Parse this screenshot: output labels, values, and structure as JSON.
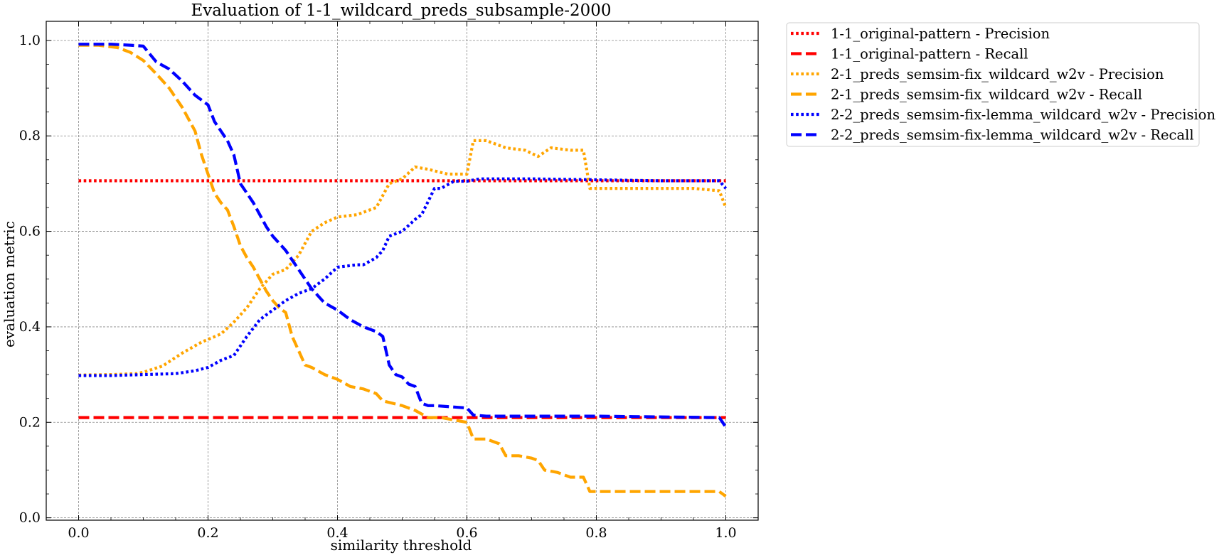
{
  "chart_data": {
    "type": "line",
    "title": "Evaluation of 1-1_wildcard_preds_subsample-2000",
    "xlabel": "similarity threshold",
    "ylabel": "evaluation metric",
    "xlim": [
      -0.05,
      1.05
    ],
    "ylim": [
      -0.005,
      1.04
    ],
    "xticks": [
      0.0,
      0.2,
      0.4,
      0.6,
      0.8,
      1.0
    ],
    "yticks": [
      0.0,
      0.2,
      0.4,
      0.6,
      0.8,
      1.0
    ],
    "xtick_labels": [
      "0.0",
      "0.2",
      "0.4",
      "0.6",
      "0.8",
      "1.0"
    ],
    "ytick_labels": [
      "0.0",
      "0.2",
      "0.4",
      "0.6",
      "0.8",
      "1.0"
    ],
    "grid": true,
    "legend_position": "outside-top-right",
    "series": [
      {
        "name": "1-1_original-pattern - Precision",
        "color": "#ff0000",
        "style": "dotted",
        "x": [
          0.0,
          1.0
        ],
        "y": [
          0.706,
          0.706
        ]
      },
      {
        "name": "1-1_original-pattern - Recall",
        "color": "#ff0000",
        "style": "dashed",
        "x": [
          0.0,
          1.0
        ],
        "y": [
          0.21,
          0.21
        ]
      },
      {
        "name": "2-1_preds_semsim-fix_wildcard_w2v - Precision",
        "color": "#ffa500",
        "style": "dotted",
        "x": [
          0.0,
          0.05,
          0.09,
          0.1,
          0.13,
          0.16,
          0.19,
          0.22,
          0.24,
          0.26,
          0.28,
          0.3,
          0.32,
          0.34,
          0.36,
          0.38,
          0.4,
          0.43,
          0.46,
          0.48,
          0.5,
          0.52,
          0.54,
          0.57,
          0.6,
          0.61,
          0.63,
          0.66,
          0.69,
          0.71,
          0.73,
          0.76,
          0.78,
          0.79,
          0.82,
          0.86,
          0.9,
          0.95,
          0.99,
          1.0
        ],
        "y": [
          0.299,
          0.3,
          0.302,
          0.305,
          0.318,
          0.345,
          0.368,
          0.385,
          0.41,
          0.44,
          0.48,
          0.51,
          0.52,
          0.55,
          0.6,
          0.618,
          0.63,
          0.635,
          0.65,
          0.7,
          0.71,
          0.735,
          0.73,
          0.72,
          0.72,
          0.79,
          0.79,
          0.775,
          0.77,
          0.757,
          0.775,
          0.77,
          0.77,
          0.69,
          0.69,
          0.69,
          0.69,
          0.69,
          0.685,
          0.65
        ]
      },
      {
        "name": "2-1_preds_semsim-fix_wildcard_w2v - Recall",
        "color": "#ffa500",
        "style": "dashed",
        "x": [
          0.0,
          0.03,
          0.06,
          0.08,
          0.1,
          0.12,
          0.14,
          0.16,
          0.18,
          0.19,
          0.2,
          0.21,
          0.22,
          0.23,
          0.24,
          0.25,
          0.26,
          0.27,
          0.28,
          0.29,
          0.3,
          0.31,
          0.32,
          0.33,
          0.34,
          0.35,
          0.36,
          0.38,
          0.4,
          0.42,
          0.44,
          0.46,
          0.47,
          0.5,
          0.52,
          0.54,
          0.56,
          0.58,
          0.6,
          0.61,
          0.63,
          0.65,
          0.66,
          0.68,
          0.7,
          0.71,
          0.72,
          0.74,
          0.76,
          0.78,
          0.79,
          0.82,
          0.9,
          0.99,
          1.0
        ],
        "y": [
          0.99,
          0.99,
          0.985,
          0.975,
          0.958,
          0.93,
          0.9,
          0.86,
          0.81,
          0.76,
          0.72,
          0.68,
          0.66,
          0.645,
          0.61,
          0.57,
          0.545,
          0.525,
          0.5,
          0.475,
          0.455,
          0.44,
          0.43,
          0.38,
          0.35,
          0.32,
          0.315,
          0.3,
          0.29,
          0.275,
          0.27,
          0.26,
          0.245,
          0.235,
          0.225,
          0.21,
          0.21,
          0.205,
          0.2,
          0.165,
          0.165,
          0.155,
          0.13,
          0.13,
          0.125,
          0.12,
          0.1,
          0.095,
          0.085,
          0.085,
          0.055,
          0.055,
          0.055,
          0.055,
          0.045
        ]
      },
      {
        "name": "2-2_preds_semsim-fix-lemma_wildcard_w2v - Precision",
        "color": "#0000ff",
        "style": "dotted",
        "x": [
          0.0,
          0.05,
          0.1,
          0.15,
          0.18,
          0.2,
          0.22,
          0.24,
          0.26,
          0.28,
          0.3,
          0.32,
          0.34,
          0.36,
          0.38,
          0.4,
          0.43,
          0.44,
          0.46,
          0.47,
          0.48,
          0.5,
          0.52,
          0.53,
          0.55,
          0.56,
          0.58,
          0.6,
          0.62,
          0.7,
          0.8,
          0.9,
          0.99,
          1.0
        ],
        "y": [
          0.298,
          0.298,
          0.3,
          0.302,
          0.308,
          0.315,
          0.33,
          0.34,
          0.38,
          0.415,
          0.435,
          0.455,
          0.47,
          0.48,
          0.5,
          0.525,
          0.53,
          0.53,
          0.545,
          0.56,
          0.59,
          0.6,
          0.625,
          0.635,
          0.69,
          0.69,
          0.705,
          0.705,
          0.71,
          0.71,
          0.708,
          0.706,
          0.706,
          0.69
        ]
      },
      {
        "name": "2-2_preds_semsim-fix-lemma_wildcard_w2v - Recall",
        "color": "#0000ff",
        "style": "dashed",
        "x": [
          0.0,
          0.02,
          0.05,
          0.08,
          0.1,
          0.12,
          0.14,
          0.16,
          0.18,
          0.19,
          0.2,
          0.21,
          0.22,
          0.23,
          0.24,
          0.25,
          0.26,
          0.27,
          0.28,
          0.29,
          0.3,
          0.31,
          0.32,
          0.33,
          0.34,
          0.35,
          0.36,
          0.38,
          0.4,
          0.42,
          0.44,
          0.46,
          0.47,
          0.48,
          0.49,
          0.5,
          0.51,
          0.52,
          0.53,
          0.54,
          0.55,
          0.6,
          0.61,
          0.63,
          0.8,
          0.99,
          1.0
        ],
        "y": [
          0.992,
          0.992,
          0.992,
          0.99,
          0.988,
          0.955,
          0.94,
          0.915,
          0.885,
          0.875,
          0.865,
          0.83,
          0.81,
          0.79,
          0.76,
          0.7,
          0.68,
          0.66,
          0.635,
          0.61,
          0.59,
          0.575,
          0.56,
          0.54,
          0.52,
          0.5,
          0.48,
          0.45,
          0.435,
          0.415,
          0.4,
          0.39,
          0.38,
          0.32,
          0.3,
          0.295,
          0.28,
          0.275,
          0.24,
          0.235,
          0.235,
          0.23,
          0.215,
          0.213,
          0.213,
          0.21,
          0.19
        ]
      }
    ]
  }
}
